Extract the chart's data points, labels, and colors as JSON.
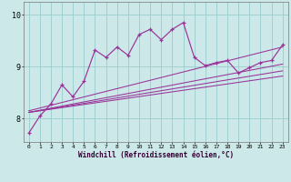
{
  "xlabel": "Windchill (Refroidissement éolien,°C)",
  "bg_color": "#cce8e8",
  "line_color": "#993399",
  "grid_color": "#99cccc",
  "xlim": [
    -0.5,
    23.5
  ],
  "ylim": [
    7.55,
    10.25
  ],
  "yticks": [
    8,
    9,
    10
  ],
  "xticks": [
    0,
    1,
    2,
    3,
    4,
    5,
    6,
    7,
    8,
    9,
    10,
    11,
    12,
    13,
    14,
    15,
    16,
    17,
    18,
    19,
    20,
    21,
    22,
    23
  ],
  "main_x": [
    0,
    1,
    2,
    3,
    4,
    5,
    6,
    7,
    8,
    9,
    10,
    11,
    12,
    13,
    14,
    15,
    16,
    17,
    18,
    19,
    20,
    21,
    22,
    23
  ],
  "main_y": [
    7.72,
    8.05,
    8.28,
    8.65,
    8.42,
    8.72,
    9.32,
    9.18,
    9.38,
    9.22,
    9.62,
    9.72,
    9.52,
    9.72,
    9.85,
    9.18,
    9.02,
    9.08,
    9.12,
    8.88,
    8.98,
    9.08,
    9.12,
    9.42
  ],
  "straight_lines": [
    {
      "x0": 0.0,
      "y0": 8.12,
      "x1": 23,
      "y1": 8.82
    },
    {
      "x0": 0.0,
      "y0": 8.12,
      "x1": 23,
      "y1": 8.92
    },
    {
      "x0": 0.0,
      "y0": 8.12,
      "x1": 23,
      "y1": 9.05
    },
    {
      "x0": 0.0,
      "y0": 8.15,
      "x1": 23,
      "y1": 9.38
    }
  ]
}
